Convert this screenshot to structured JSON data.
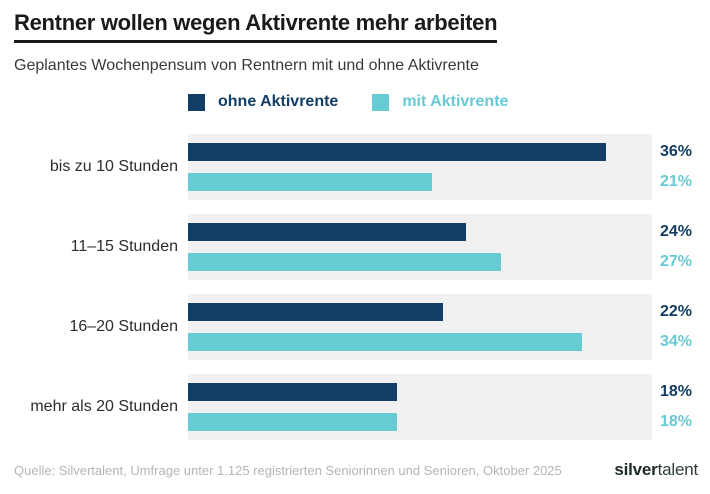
{
  "header": {
    "title": "Rentner wollen wegen Aktivrente mehr arbeiten",
    "subtitle": "Geplantes Wochenpensum von Rentnern mit und ohne Aktivrente"
  },
  "chart_data": {
    "type": "bar",
    "orientation": "horizontal",
    "title": "Rentner wollen wegen Aktivrente mehr arbeiten",
    "subtitle": "Geplantes Wochenpensum von Rentnern mit und ohne Aktivrente",
    "categories": [
      "bis zu 10 Stunden",
      "11–15 Stunden",
      "16–20 Stunden",
      "mehr als 20 Stunden"
    ],
    "series": [
      {
        "name": "ohne Aktivrente",
        "color": "#123d64",
        "values": [
          36,
          24,
          22,
          18
        ]
      },
      {
        "name": "mit Aktivrente",
        "color": "#66cbd2",
        "values": [
          21,
          27,
          34,
          18
        ]
      }
    ],
    "value_suffix": "%",
    "xlim": [
      0,
      40
    ],
    "grid": false,
    "legend_position": "top",
    "track_color": "#f1f1f2"
  },
  "footer": {
    "source": "Quelle: Silvertalent, Umfrage unter 1.125 registrierten Seniorinnen und Senioren, Oktober 2025",
    "logo": {
      "bold": "silver",
      "regular": "talent"
    }
  }
}
